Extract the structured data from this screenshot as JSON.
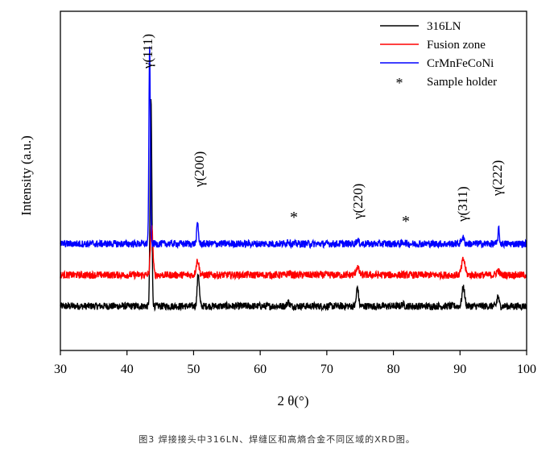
{
  "chart_data": {
    "type": "line",
    "xlabel": "2 θ(°)",
    "ylabel": "Intensity (a.u.)",
    "xlim": [
      30,
      100
    ],
    "xticks": [
      30,
      40,
      50,
      60,
      70,
      80,
      90,
      100
    ],
    "yticks_shown": false,
    "legend_position": "top-right",
    "series": [
      {
        "name": "316LN",
        "color": "#000000",
        "baseline": 0.0,
        "peaks": [
          [
            43.6,
            12.0,
            0.18
          ],
          [
            50.7,
            1.9,
            0.22
          ],
          [
            64.2,
            0.25,
            0.25
          ],
          [
            74.6,
            1.1,
            0.22
          ],
          [
            81.4,
            0.12,
            0.25
          ],
          [
            90.5,
            1.1,
            0.28
          ],
          [
            95.7,
            0.6,
            0.2
          ]
        ]
      },
      {
        "name": "Fusion zone",
        "color": "#ff0000",
        "baseline": 1.8,
        "peaks": [
          [
            43.7,
            2.9,
            0.25
          ],
          [
            50.6,
            0.85,
            0.3
          ],
          [
            64.3,
            0.12,
            0.3
          ],
          [
            74.6,
            0.45,
            0.3
          ],
          [
            90.5,
            0.9,
            0.35
          ],
          [
            95.7,
            0.25,
            0.3
          ]
        ]
      },
      {
        "name": "CrMnFeCoNi",
        "color": "#0000ff",
        "baseline": 3.6,
        "peaks": [
          [
            43.4,
            11.4,
            0.15
          ],
          [
            50.6,
            1.2,
            0.18
          ],
          [
            64.2,
            0.18,
            0.25
          ],
          [
            74.6,
            0.2,
            0.25
          ],
          [
            81.6,
            0.1,
            0.3
          ],
          [
            90.4,
            0.35,
            0.3
          ],
          [
            95.8,
            0.85,
            0.15
          ]
        ]
      }
    ],
    "annotations": [
      {
        "text": "γ(111)",
        "x": 43.4
      },
      {
        "text": "γ(200)",
        "x": 50.6
      },
      {
        "text": "*",
        "x": 64.9
      },
      {
        "text": "γ(220)",
        "x": 74.6
      },
      {
        "text": "*",
        "x": 81.7
      },
      {
        "text": "γ(311)",
        "x": 90.4
      },
      {
        "text": "γ(222)",
        "x": 95.8
      }
    ],
    "legend": [
      {
        "label": "316LN",
        "color": "#000000",
        "marker": "line"
      },
      {
        "label": "Fusion zone",
        "color": "#ff0000",
        "marker": "line"
      },
      {
        "label": "CrMnFeCoNi",
        "color": "#0000ff",
        "marker": "line"
      },
      {
        "label": "Sample holder",
        "color": "#000000",
        "marker": "*"
      }
    ]
  },
  "caption": "图3 焊接接头中316LN、焊缝区和高熵合金不同区域的XRD图。"
}
